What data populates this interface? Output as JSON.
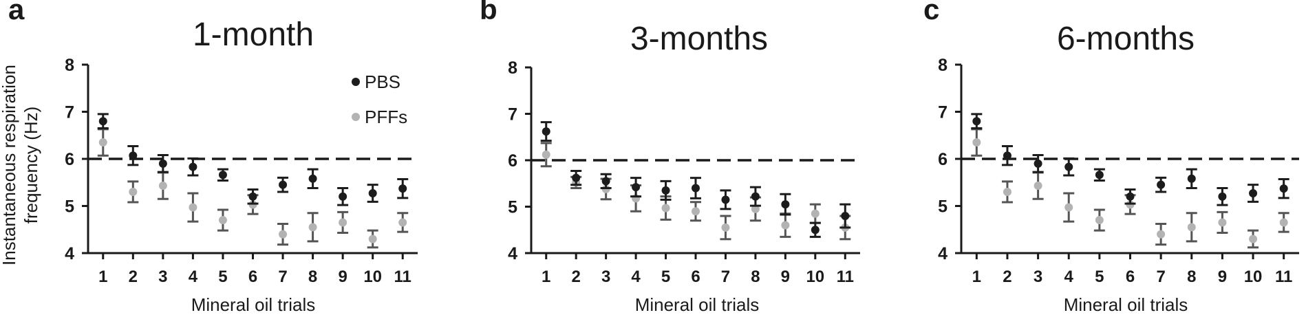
{
  "figure": {
    "ylabel_line1": "Instantaneous respiration",
    "ylabel_line2": "frequency (Hz)"
  },
  "legend": [
    {
      "label": "PBS",
      "color": "#1c1c1c"
    },
    {
      "label": "PFFs",
      "color": "#b3b3b3"
    }
  ],
  "style": {
    "pbs_color": "#1c1c1c",
    "pbs_error_color": "#1c1c1c",
    "pffs_color": "#b3b3b3",
    "pffs_error_color": "#555555",
    "axis_color": "#1a1a1a",
    "reference_line_color": "#1a1a1a"
  },
  "chart_data": [
    {
      "type": "scatter",
      "panel_letter": "a",
      "title": "1-month",
      "xlabel": "Mineral oil trials",
      "categories": [
        "1",
        "2",
        "3",
        "4",
        "5",
        "6",
        "7",
        "8",
        "9",
        "10",
        "11"
      ],
      "yticks": [
        "4",
        "5",
        "6",
        "7",
        "8"
      ],
      "ylim": [
        4,
        8
      ],
      "reference_line": 6,
      "legend_position": "top-right",
      "series": [
        {
          "name": "PBS",
          "values": [
            6.8,
            6.07,
            5.9,
            5.83,
            5.66,
            5.2,
            5.45,
            5.58,
            5.2,
            5.27,
            5.37
          ],
          "error": [
            0.15,
            0.2,
            0.18,
            0.18,
            0.12,
            0.15,
            0.15,
            0.2,
            0.18,
            0.18,
            0.2
          ]
        },
        {
          "name": "PFFs",
          "values": [
            6.35,
            5.3,
            5.43,
            4.97,
            4.7,
            5.03,
            4.4,
            4.55,
            4.65,
            4.3,
            4.65
          ],
          "error": [
            0.28,
            0.22,
            0.28,
            0.3,
            0.22,
            0.2,
            0.22,
            0.3,
            0.22,
            0.18,
            0.2
          ]
        }
      ]
    },
    {
      "type": "scatter",
      "panel_letter": "b",
      "title": "3-months",
      "xlabel": "Mineral oil trials",
      "categories": [
        "1",
        "2",
        "3",
        "4",
        "5",
        "6",
        "7",
        "8",
        "9",
        "10",
        "11"
      ],
      "yticks": [
        "4",
        "5",
        "6",
        "7",
        "8"
      ],
      "ylim": [
        4,
        8
      ],
      "reference_line": 6,
      "series": [
        {
          "name": "PBS",
          "values": [
            6.62,
            5.62,
            5.55,
            5.42,
            5.35,
            5.4,
            5.15,
            5.22,
            5.05,
            4.5,
            4.8
          ],
          "error": [
            0.2,
            0.15,
            0.15,
            0.2,
            0.2,
            0.22,
            0.2,
            0.2,
            0.22,
            0.15,
            0.25
          ]
        },
        {
          "name": "PFFs",
          "values": [
            6.12,
            5.52,
            5.38,
            5.18,
            4.97,
            4.9,
            4.55,
            4.95,
            4.6,
            4.85,
            4.55
          ],
          "error": [
            0.25,
            0.12,
            0.22,
            0.28,
            0.25,
            0.2,
            0.25,
            0.25,
            0.25,
            0.2,
            0.25
          ]
        }
      ]
    },
    {
      "type": "scatter",
      "panel_letter": "c",
      "title": "6-months",
      "xlabel": "Mineral oil trials",
      "categories": [
        "1",
        "2",
        "3",
        "4",
        "5",
        "6",
        "7",
        "8",
        "9",
        "10",
        "11"
      ],
      "yticks": [
        "4",
        "5",
        "6",
        "7",
        "8"
      ],
      "ylim": [
        4,
        8
      ],
      "reference_line": 6,
      "series": [
        {
          "name": "PBS",
          "values": [
            6.8,
            6.07,
            5.9,
            5.83,
            5.66,
            5.2,
            5.45,
            5.58,
            5.2,
            5.27,
            5.37
          ],
          "error": [
            0.15,
            0.2,
            0.18,
            0.18,
            0.12,
            0.15,
            0.15,
            0.2,
            0.18,
            0.18,
            0.2
          ]
        },
        {
          "name": "PFFs",
          "values": [
            6.35,
            5.3,
            5.43,
            4.97,
            4.7,
            5.03,
            4.4,
            4.55,
            4.65,
            4.3,
            4.65
          ],
          "error": [
            0.28,
            0.22,
            0.28,
            0.3,
            0.22,
            0.2,
            0.22,
            0.3,
            0.22,
            0.18,
            0.2
          ]
        }
      ]
    }
  ]
}
